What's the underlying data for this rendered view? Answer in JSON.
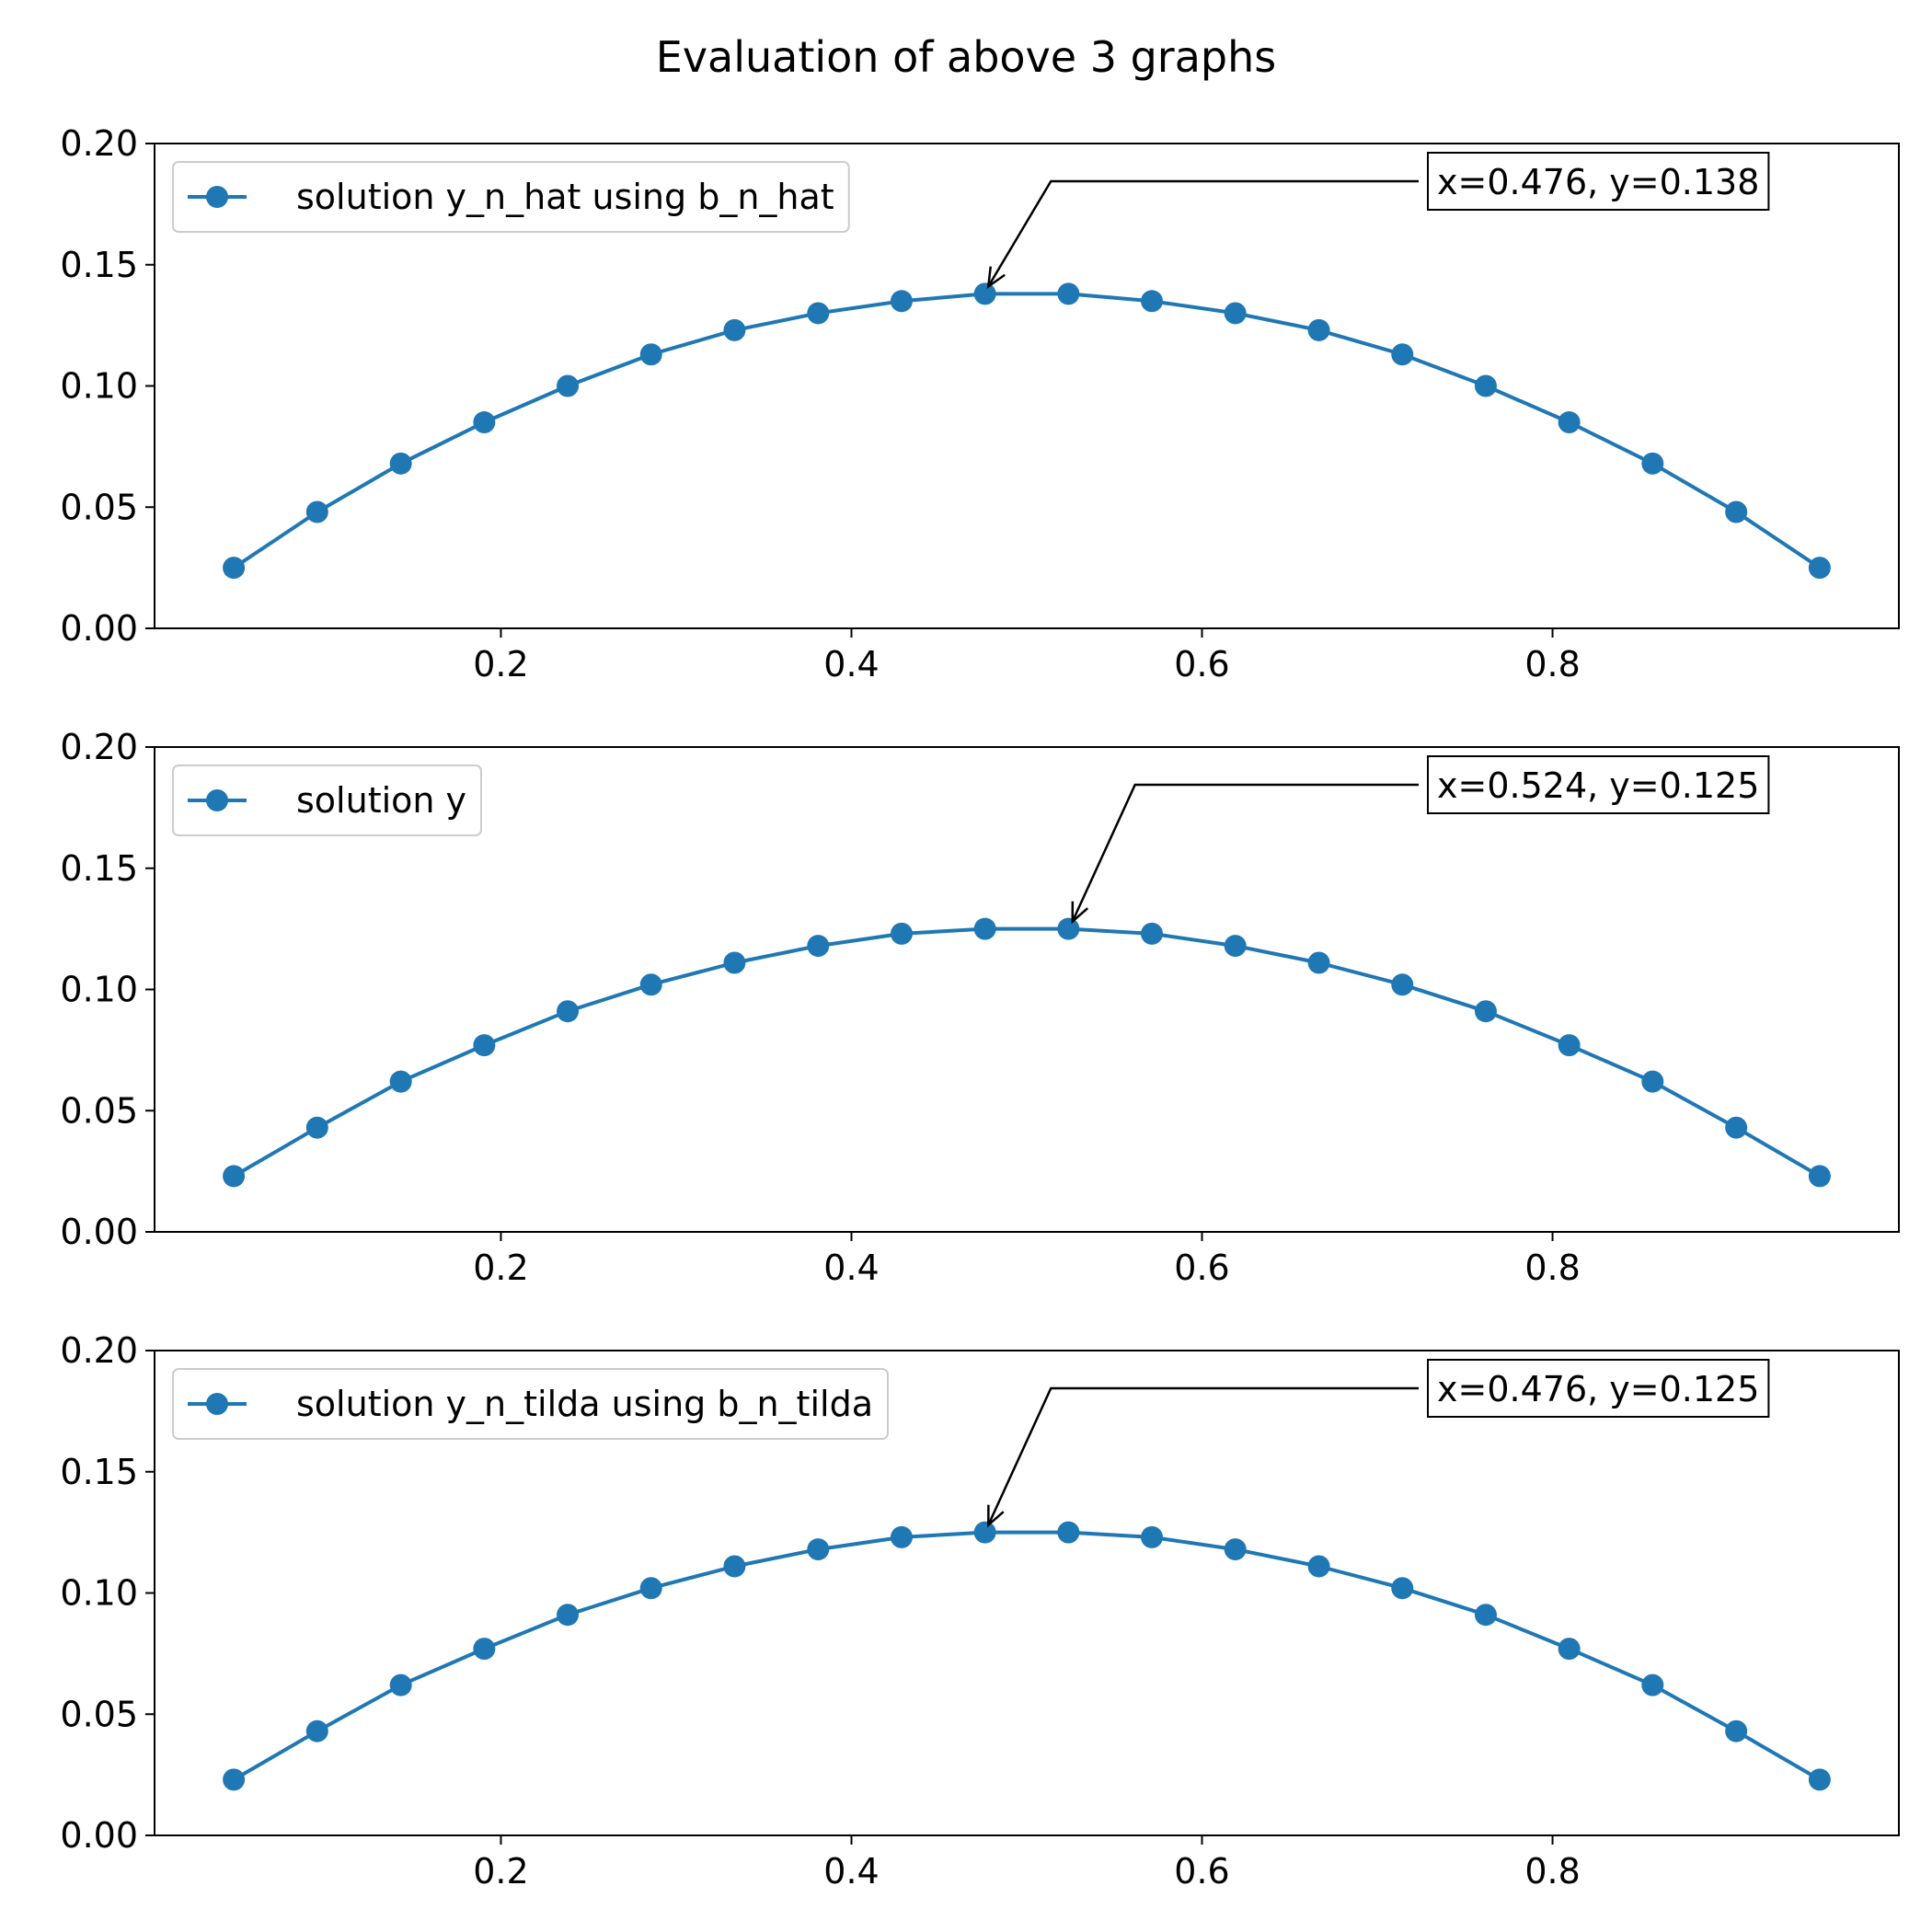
{
  "figure": {
    "title": "Evaluation of above 3 graphs"
  },
  "chart_data": [
    {
      "type": "line",
      "series": [
        {
          "name": "solution y_n_hat using b_n_hat",
          "color": "#1f77b4",
          "marker": "circle",
          "x": [
            0.0476,
            0.0952,
            0.1429,
            0.1905,
            0.2381,
            0.2857,
            0.3333,
            0.381,
            0.4286,
            0.4762,
            0.5238,
            0.5714,
            0.619,
            0.6667,
            0.7143,
            0.7619,
            0.8095,
            0.8571,
            0.9048,
            0.9524
          ],
          "y": [
            0.025,
            0.048,
            0.068,
            0.085,
            0.1,
            0.113,
            0.123,
            0.13,
            0.135,
            0.138,
            0.138,
            0.135,
            0.13,
            0.123,
            0.113,
            0.1,
            0.085,
            0.068,
            0.048,
            0.025
          ]
        }
      ],
      "x_ticks": [
        0.2,
        0.4,
        0.6,
        0.8
      ],
      "x_tick_labels": [
        "0.2",
        "0.4",
        "0.6",
        "0.8"
      ],
      "y_ticks": [
        0.0,
        0.05,
        0.1,
        0.15,
        0.2
      ],
      "y_tick_labels": [
        "0.00",
        "0.05",
        "0.10",
        "0.15",
        "0.20"
      ],
      "xlim": [
        0.0024,
        0.9976
      ],
      "ylim": [
        0.0,
        0.2
      ],
      "grid": false,
      "legend": "upper-left",
      "annotation": {
        "text": "x=0.476, y=0.138",
        "point": [
          0.476,
          0.138
        ]
      }
    },
    {
      "type": "line",
      "series": [
        {
          "name": "solution y",
          "color": "#1f77b4",
          "marker": "circle",
          "x": [
            0.0476,
            0.0952,
            0.1429,
            0.1905,
            0.2381,
            0.2857,
            0.3333,
            0.381,
            0.4286,
            0.4762,
            0.5238,
            0.5714,
            0.619,
            0.6667,
            0.7143,
            0.7619,
            0.8095,
            0.8571,
            0.9048,
            0.9524
          ],
          "y": [
            0.023,
            0.043,
            0.062,
            0.077,
            0.091,
            0.102,
            0.111,
            0.118,
            0.123,
            0.125,
            0.125,
            0.123,
            0.118,
            0.111,
            0.102,
            0.091,
            0.077,
            0.062,
            0.043,
            0.023
          ]
        }
      ],
      "x_ticks": [
        0.2,
        0.4,
        0.6,
        0.8
      ],
      "x_tick_labels": [
        "0.2",
        "0.4",
        "0.6",
        "0.8"
      ],
      "y_ticks": [
        0.0,
        0.05,
        0.1,
        0.15,
        0.2
      ],
      "y_tick_labels": [
        "0.00",
        "0.05",
        "0.10",
        "0.15",
        "0.20"
      ],
      "xlim": [
        0.0024,
        0.9976
      ],
      "ylim": [
        0.0,
        0.2
      ],
      "grid": false,
      "legend": "upper-left",
      "annotation": {
        "text": "x=0.524, y=0.125",
        "point": [
          0.524,
          0.125
        ]
      }
    },
    {
      "type": "line",
      "series": [
        {
          "name": "solution y_n_tilda using b_n_tilda",
          "color": "#1f77b4",
          "marker": "circle",
          "x": [
            0.0476,
            0.0952,
            0.1429,
            0.1905,
            0.2381,
            0.2857,
            0.3333,
            0.381,
            0.4286,
            0.4762,
            0.5238,
            0.5714,
            0.619,
            0.6667,
            0.7143,
            0.7619,
            0.8095,
            0.8571,
            0.9048,
            0.9524
          ],
          "y": [
            0.023,
            0.043,
            0.062,
            0.077,
            0.091,
            0.102,
            0.111,
            0.118,
            0.123,
            0.125,
            0.125,
            0.123,
            0.118,
            0.111,
            0.102,
            0.091,
            0.077,
            0.062,
            0.043,
            0.023
          ]
        }
      ],
      "x_ticks": [
        0.2,
        0.4,
        0.6,
        0.8
      ],
      "x_tick_labels": [
        "0.2",
        "0.4",
        "0.6",
        "0.8"
      ],
      "y_ticks": [
        0.0,
        0.05,
        0.1,
        0.15,
        0.2
      ],
      "y_tick_labels": [
        "0.00",
        "0.05",
        "0.10",
        "0.15",
        "0.20"
      ],
      "xlim": [
        0.0024,
        0.9976
      ],
      "ylim": [
        0.0,
        0.2
      ],
      "grid": false,
      "legend": "upper-left",
      "annotation": {
        "text": "x=0.476, y=0.125",
        "point": [
          0.476,
          0.125
        ]
      }
    }
  ]
}
